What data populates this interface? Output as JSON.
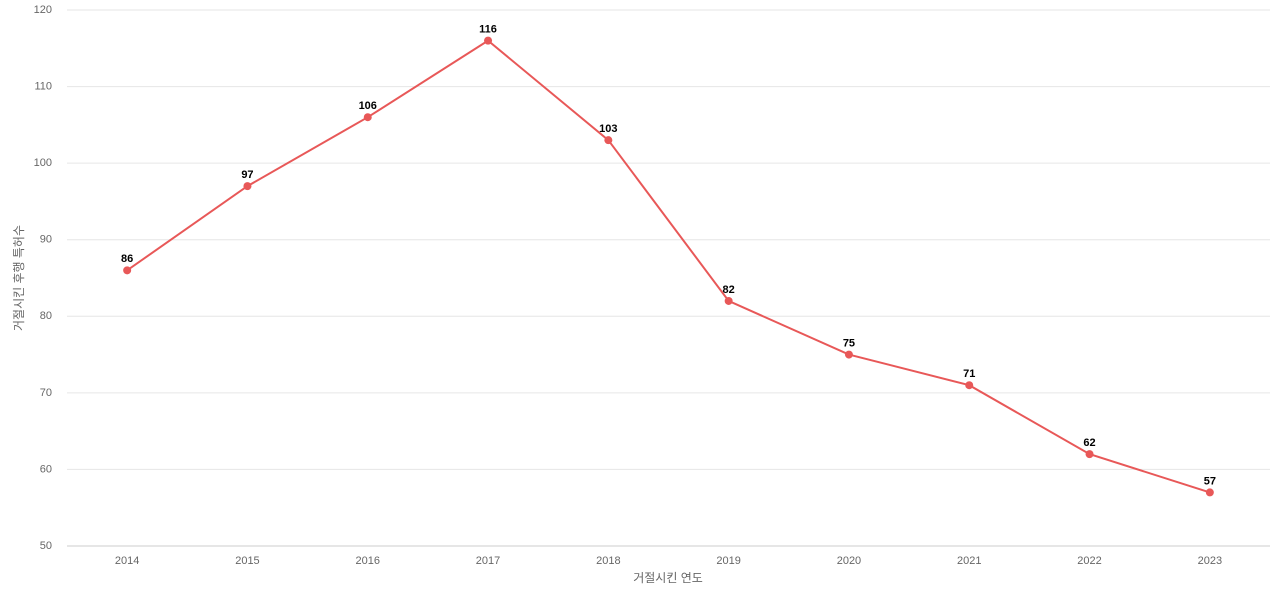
{
  "chart_data": {
    "type": "line",
    "x_label": "거절시킨 연도",
    "y_label": "거절시킨 후행 특허수",
    "categories": [
      "2014",
      "2015",
      "2016",
      "2017",
      "2018",
      "2019",
      "2020",
      "2021",
      "2022",
      "2023"
    ],
    "series": [
      {
        "color": "#e85858",
        "values": [
          86,
          97,
          106,
          116,
          103,
          82,
          75,
          71,
          62,
          57
        ]
      }
    ],
    "ylim": [
      50,
      120
    ],
    "yticks": [
      50,
      60,
      70,
      80,
      90,
      100,
      110,
      120
    ],
    "grid": true
  }
}
